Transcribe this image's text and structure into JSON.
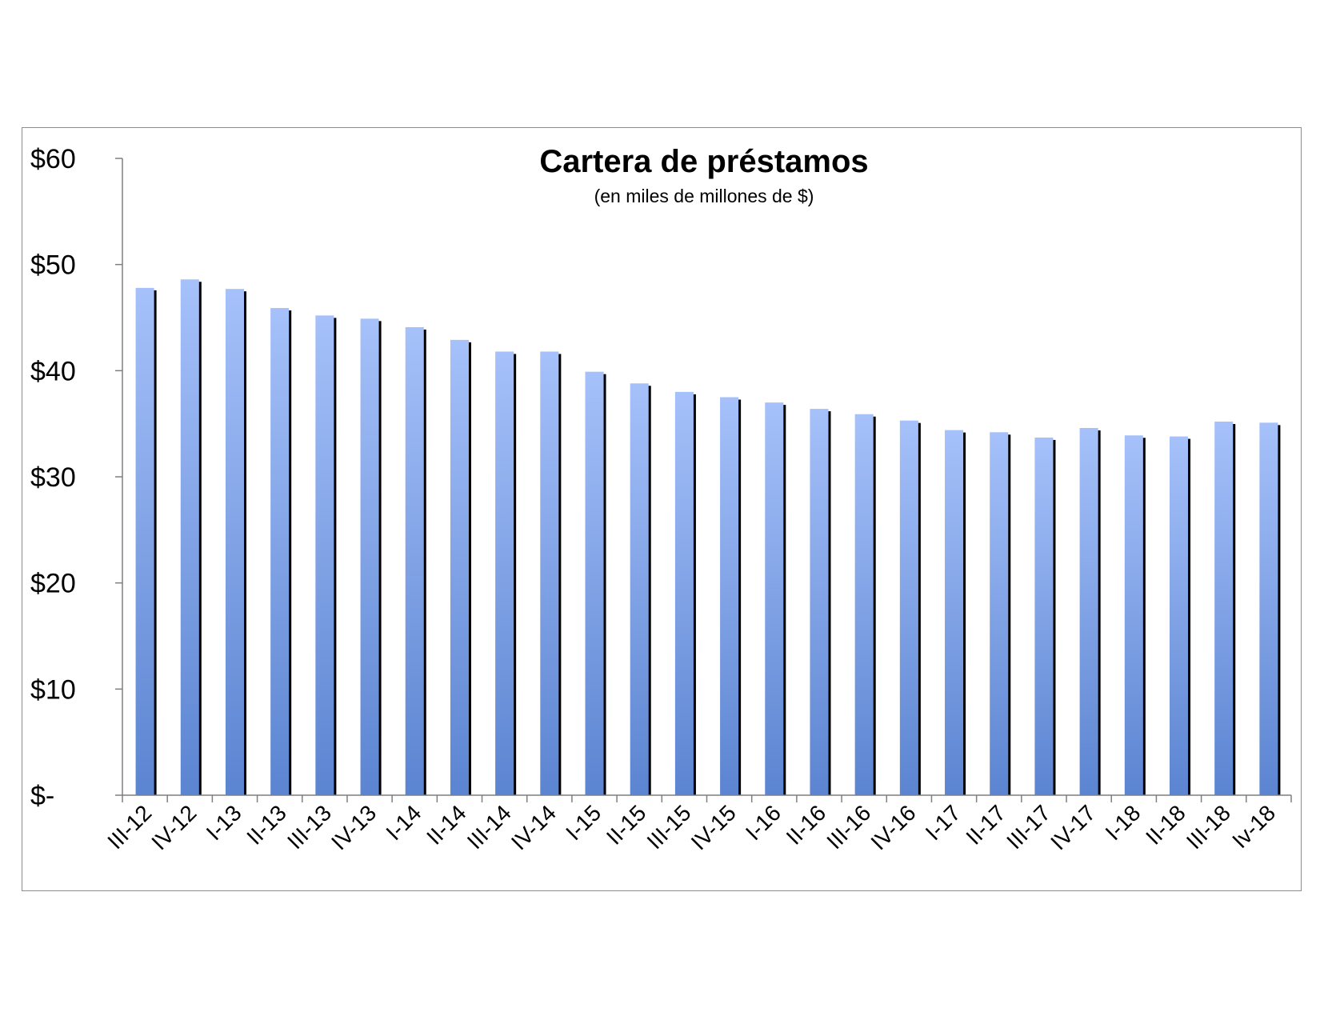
{
  "chart_data": {
    "type": "bar",
    "title": "Cartera de préstamos",
    "subtitle": "(en miles de millones  de $)",
    "xlabel": "",
    "ylabel": "",
    "ylim": [
      0,
      60
    ],
    "yticks": [
      0,
      10,
      20,
      30,
      40,
      50,
      60
    ],
    "ytick_labels": [
      "$-",
      "$10",
      "$20",
      "$30",
      "$40",
      "$50",
      "$60"
    ],
    "grid": false,
    "legend": "none",
    "categories": [
      "III-12",
      "IV-12",
      "I-13",
      "II-13",
      "III-13",
      "IV-13",
      "I-14",
      "II-14",
      "III-14",
      "IV-14",
      "I-15",
      "II-15",
      "III-15",
      "IV-15",
      "I-16",
      "II-16",
      "III-16",
      "IV-16",
      "I-17",
      "II-17",
      "III-17",
      "IV-17",
      "I-18",
      "II-18",
      "III-18",
      "Iv-18"
    ],
    "values": [
      47.8,
      48.6,
      47.7,
      45.9,
      45.2,
      44.9,
      44.1,
      42.9,
      41.8,
      41.8,
      39.9,
      38.8,
      38.0,
      37.5,
      37.0,
      36.4,
      35.9,
      35.3,
      34.4,
      34.2,
      33.7,
      34.6,
      33.9,
      33.8,
      35.2,
      35.1
    ],
    "colors": {
      "bar_top": "#a6c1fa",
      "bar_bottom": "#5b84d1",
      "bar_shadow": "#000000",
      "axis": "#7f7f7f",
      "frame": "#8c8c8c"
    }
  }
}
